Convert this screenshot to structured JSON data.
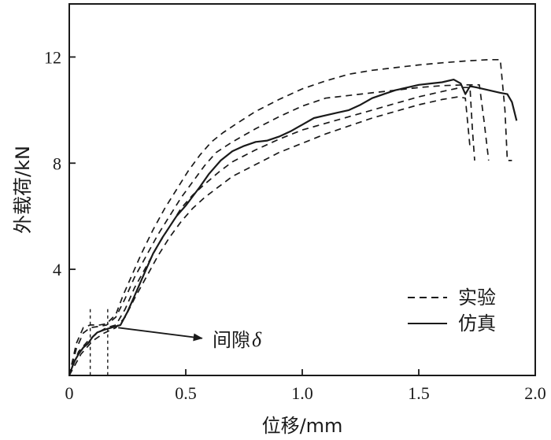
{
  "chart_data": {
    "type": "line",
    "title": "",
    "xlabel": "位移/mm",
    "ylabel": "外载荷/kN",
    "xlim": [
      0,
      2.0
    ],
    "ylim": [
      0,
      14
    ],
    "xticks": [
      {
        "value": 0,
        "label": "0"
      },
      {
        "value": 0.5,
        "label": "0.5"
      },
      {
        "value": 1.0,
        "label": "1.0"
      },
      {
        "value": 1.5,
        "label": "1.5"
      },
      {
        "value": 2.0,
        "label": "2.0"
      }
    ],
    "yticks": [
      {
        "value": 4,
        "label": "4"
      },
      {
        "value": 8,
        "label": "8"
      },
      {
        "value": 12,
        "label": "12"
      }
    ],
    "grid": false,
    "legend": {
      "position": "bottom-right",
      "entries": [
        {
          "label": "实验",
          "style": "dashed"
        },
        {
          "label": "仿真",
          "style": "solid"
        }
      ]
    },
    "annotation": {
      "text": "间隙",
      "symbol": "δ",
      "from": [
        0.21,
        1.8
      ],
      "to": [
        0.57,
        1.4
      ]
    },
    "gap_markers": [
      {
        "x": 0.09,
        "ytop": 2.5
      },
      {
        "x": 0.165,
        "ytop": 2.5
      }
    ],
    "series": [
      {
        "style": "solid",
        "points": [
          [
            0,
            0
          ],
          [
            0.02,
            0.5
          ],
          [
            0.04,
            0.8
          ],
          [
            0.06,
            1.05
          ],
          [
            0.08,
            1.2
          ],
          [
            0.1,
            1.45
          ],
          [
            0.12,
            1.62
          ],
          [
            0.15,
            1.72
          ],
          [
            0.18,
            1.8
          ],
          [
            0.2,
            1.85
          ],
          [
            0.22,
            1.9
          ],
          [
            0.25,
            2.4
          ],
          [
            0.28,
            3.0
          ],
          [
            0.3,
            3.4
          ],
          [
            0.33,
            4.0
          ],
          [
            0.36,
            4.6
          ],
          [
            0.4,
            5.2
          ],
          [
            0.43,
            5.6
          ],
          [
            0.46,
            6.0
          ],
          [
            0.5,
            6.4
          ],
          [
            0.53,
            6.75
          ],
          [
            0.56,
            7.1
          ],
          [
            0.6,
            7.6
          ],
          [
            0.65,
            8.1
          ],
          [
            0.7,
            8.45
          ],
          [
            0.75,
            8.65
          ],
          [
            0.8,
            8.8
          ],
          [
            0.85,
            8.85
          ],
          [
            0.9,
            9.0
          ],
          [
            0.95,
            9.2
          ],
          [
            1.0,
            9.45
          ],
          [
            1.05,
            9.7
          ],
          [
            1.1,
            9.8
          ],
          [
            1.15,
            9.9
          ],
          [
            1.2,
            10.0
          ],
          [
            1.25,
            10.2
          ],
          [
            1.3,
            10.45
          ],
          [
            1.35,
            10.6
          ],
          [
            1.4,
            10.75
          ],
          [
            1.45,
            10.85
          ],
          [
            1.5,
            10.95
          ],
          [
            1.55,
            11.0
          ],
          [
            1.6,
            11.05
          ],
          [
            1.65,
            11.15
          ],
          [
            1.68,
            11.0
          ],
          [
            1.7,
            10.6
          ],
          [
            1.72,
            10.9
          ],
          [
            1.75,
            10.85
          ],
          [
            1.8,
            10.75
          ],
          [
            1.85,
            10.65
          ],
          [
            1.88,
            10.6
          ],
          [
            1.9,
            10.3
          ],
          [
            1.92,
            9.6
          ]
        ]
      },
      {
        "style": "dashed",
        "points": [
          [
            0,
            0
          ],
          [
            0.03,
            1.2
          ],
          [
            0.06,
            1.8
          ],
          [
            0.09,
            1.9
          ],
          [
            0.13,
            1.9
          ],
          [
            0.16,
            1.95
          ],
          [
            0.2,
            2.3
          ],
          [
            0.23,
            3.0
          ],
          [
            0.27,
            3.8
          ],
          [
            0.31,
            4.6
          ],
          [
            0.36,
            5.5
          ],
          [
            0.41,
            6.3
          ],
          [
            0.46,
            7.0
          ],
          [
            0.51,
            7.7
          ],
          [
            0.56,
            8.3
          ],
          [
            0.61,
            8.8
          ],
          [
            0.66,
            9.15
          ],
          [
            0.72,
            9.5
          ],
          [
            0.8,
            9.95
          ],
          [
            0.9,
            10.4
          ],
          [
            1.0,
            10.8
          ],
          [
            1.1,
            11.1
          ],
          [
            1.2,
            11.35
          ],
          [
            1.3,
            11.5
          ],
          [
            1.4,
            11.6
          ],
          [
            1.5,
            11.7
          ],
          [
            1.6,
            11.78
          ],
          [
            1.7,
            11.85
          ],
          [
            1.8,
            11.9
          ],
          [
            1.85,
            11.9
          ],
          [
            1.87,
            10.0
          ],
          [
            1.88,
            8.1
          ],
          [
            1.9,
            8.1
          ]
        ]
      },
      {
        "style": "dashed",
        "points": [
          [
            0,
            0
          ],
          [
            0.03,
            1.0
          ],
          [
            0.06,
            1.6
          ],
          [
            0.09,
            1.8
          ],
          [
            0.13,
            1.85
          ],
          [
            0.16,
            1.9
          ],
          [
            0.2,
            2.2
          ],
          [
            0.24,
            2.9
          ],
          [
            0.28,
            3.7
          ],
          [
            0.33,
            4.5
          ],
          [
            0.38,
            5.3
          ],
          [
            0.43,
            6.0
          ],
          [
            0.48,
            6.7
          ],
          [
            0.53,
            7.3
          ],
          [
            0.58,
            7.9
          ],
          [
            0.63,
            8.4
          ],
          [
            0.7,
            8.8
          ],
          [
            0.8,
            9.3
          ],
          [
            0.9,
            9.75
          ],
          [
            1.0,
            10.15
          ],
          [
            1.1,
            10.45
          ],
          [
            1.2,
            10.55
          ],
          [
            1.3,
            10.65
          ],
          [
            1.4,
            10.75
          ],
          [
            1.5,
            10.85
          ],
          [
            1.6,
            10.92
          ],
          [
            1.7,
            10.95
          ],
          [
            1.76,
            10.95
          ],
          [
            1.78,
            9.6
          ],
          [
            1.8,
            8.1
          ]
        ]
      },
      {
        "style": "dashed",
        "points": [
          [
            0,
            0
          ],
          [
            0.04,
            0.9
          ],
          [
            0.08,
            1.3
          ],
          [
            0.12,
            1.6
          ],
          [
            0.16,
            1.8
          ],
          [
            0.2,
            1.9
          ],
          [
            0.24,
            2.5
          ],
          [
            0.28,
            3.3
          ],
          [
            0.33,
            4.1
          ],
          [
            0.38,
            4.9
          ],
          [
            0.43,
            5.6
          ],
          [
            0.48,
            6.3
          ],
          [
            0.53,
            6.8
          ],
          [
            0.58,
            7.2
          ],
          [
            0.64,
            7.65
          ],
          [
            0.7,
            8.05
          ],
          [
            0.8,
            8.5
          ],
          [
            0.9,
            8.9
          ],
          [
            1.0,
            9.25
          ],
          [
            1.1,
            9.5
          ],
          [
            1.2,
            9.75
          ],
          [
            1.3,
            10.0
          ],
          [
            1.4,
            10.25
          ],
          [
            1.5,
            10.5
          ],
          [
            1.6,
            10.7
          ],
          [
            1.68,
            10.85
          ],
          [
            1.72,
            10.85
          ],
          [
            1.73,
            9.3
          ],
          [
            1.74,
            8.1
          ]
        ]
      },
      {
        "style": "dashed",
        "points": [
          [
            0,
            0
          ],
          [
            0.05,
            0.8
          ],
          [
            0.1,
            1.3
          ],
          [
            0.15,
            1.6
          ],
          [
            0.2,
            1.8
          ],
          [
            0.24,
            2.2
          ],
          [
            0.28,
            2.9
          ],
          [
            0.33,
            3.7
          ],
          [
            0.38,
            4.5
          ],
          [
            0.43,
            5.2
          ],
          [
            0.48,
            5.8
          ],
          [
            0.53,
            6.3
          ],
          [
            0.58,
            6.7
          ],
          [
            0.64,
            7.1
          ],
          [
            0.7,
            7.5
          ],
          [
            0.8,
            7.95
          ],
          [
            0.9,
            8.4
          ],
          [
            1.0,
            8.75
          ],
          [
            1.1,
            9.1
          ],
          [
            1.2,
            9.4
          ],
          [
            1.3,
            9.7
          ],
          [
            1.4,
            9.95
          ],
          [
            1.5,
            10.2
          ],
          [
            1.6,
            10.4
          ],
          [
            1.67,
            10.5
          ],
          [
            1.7,
            10.45
          ],
          [
            1.72,
            8.6
          ]
        ]
      }
    ]
  }
}
